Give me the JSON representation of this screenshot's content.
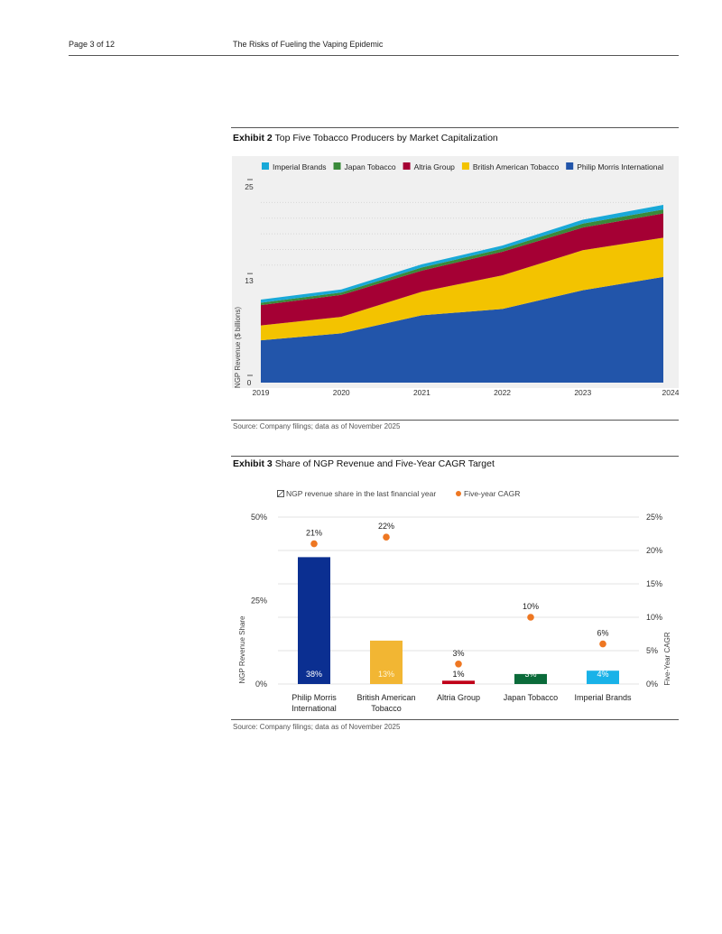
{
  "header": {
    "page": "Page 3 of 12",
    "doc_title": "The Risks of Fueling the Vaping Epidemic"
  },
  "exhibit2": {
    "label": "Exhibit 2",
    "title": "Top Five Tobacco Producers by Market Capitalization",
    "source": "Source: Company filings; data as of November 2025"
  },
  "exhibit3": {
    "label": "Exhibit 3",
    "title": "Share of NGP Revenue and Five-Year CAGR Target",
    "source": "Source: Company filings; data as of November 2025"
  },
  "chart_data": [
    {
      "type": "area",
      "stacked": true,
      "x": [
        "2019",
        "2020",
        "2021",
        "2022",
        "2023",
        "2024"
      ],
      "series": [
        {
          "name": "Philip Morris International",
          "color": "#2255aa",
          "values": [
            5.4,
            6.3,
            8.6,
            9.4,
            11.8,
            13.5
          ]
        },
        {
          "name": "British American Tobacco",
          "color": "#f3c300",
          "values": [
            1.9,
            2.1,
            3.0,
            4.3,
            5.1,
            5.0
          ]
        },
        {
          "name": "Altria Group",
          "color": "#a50034",
          "values": [
            2.6,
            2.8,
            2.7,
            3.0,
            2.9,
            3.1
          ]
        },
        {
          "name": "Japan Tobacco",
          "color": "#3a8a3a",
          "values": [
            0.3,
            0.3,
            0.4,
            0.4,
            0.5,
            0.5
          ]
        },
        {
          "name": "Imperial Brands",
          "color": "#19a9d8",
          "values": [
            0.4,
            0.4,
            0.4,
            0.4,
            0.5,
            0.6
          ]
        }
      ],
      "legend_order": [
        "Imperial Brands",
        "Japan Tobacco",
        "Altria Group",
        "British American Tobacco",
        "Philip Morris International"
      ],
      "ylabel": "NGP Revenue ($ billions)",
      "yticks": [
        "25",
        "13",
        "0"
      ],
      "ylim": [
        0,
        25
      ],
      "legend_position": "top",
      "background": "#f0f0f0"
    },
    {
      "type": "bar",
      "categories": [
        [
          "Philip Morris",
          "International"
        ],
        [
          "British American",
          "Tobacco"
        ],
        [
          "Altria Group"
        ],
        [
          "Japan Tobacco"
        ],
        [
          "Imperial Brands"
        ]
      ],
      "series": [
        {
          "name": "NGP revenue share in the last financial year",
          "kind": "bar",
          "axis": "left",
          "values": [
            38,
            13,
            1,
            3,
            4
          ],
          "labels": [
            "38%",
            "13%",
            "1%",
            "3%",
            "4%"
          ],
          "colors": [
            "#0b2f91",
            "#f2b633",
            "#c00018",
            "#0b6b3a",
            "#19b2e8"
          ]
        },
        {
          "name": "Five-year CAGR",
          "kind": "dot",
          "axis": "right",
          "color": "#ee7722",
          "values": [
            21,
            22,
            3,
            10,
            6
          ],
          "labels": [
            "21%",
            "22%",
            "3%",
            "10%",
            "6%"
          ]
        }
      ],
      "ylabel": "NGP Revenue Share",
      "y2label": "Five-Year CAGR",
      "ylim": [
        0,
        50
      ],
      "y2lim": [
        0,
        25
      ],
      "yticks": [
        "50%",
        "25%",
        "0%"
      ],
      "y2ticks": [
        "25%",
        "20%",
        "15%",
        "10%",
        "5%",
        "0%"
      ],
      "legend_position": "top"
    }
  ]
}
